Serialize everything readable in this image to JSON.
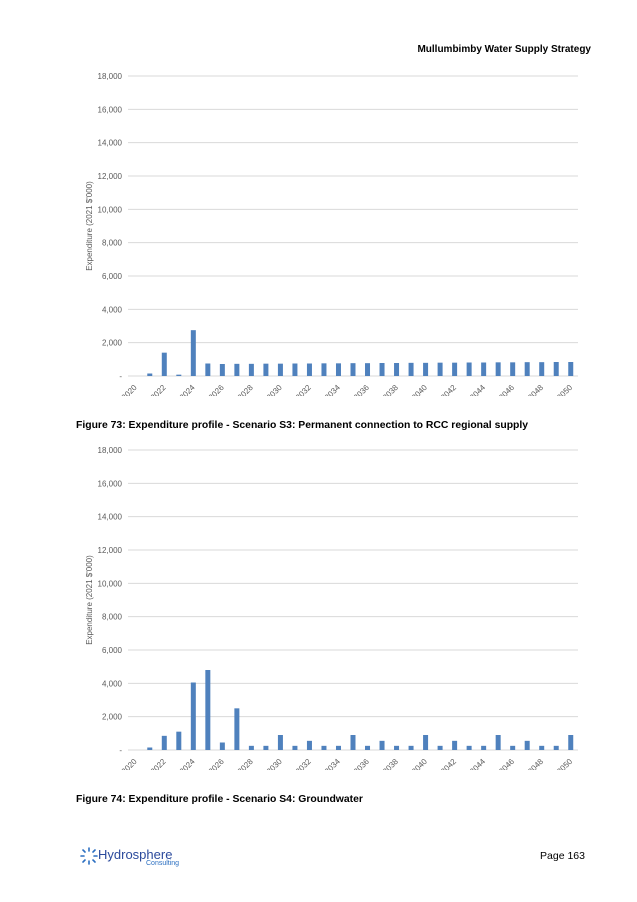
{
  "header": {
    "title": "Mullumbimby Water Supply Strategy"
  },
  "colors": {
    "bar": "#4f81bd",
    "grid": "#d9d9d9",
    "axis_text": "#595959",
    "logo_blue": "#2b4a9c"
  },
  "chart_data": [
    {
      "type": "bar",
      "ylabel": "Expenditure (2021 $'000)",
      "ylim": [
        0,
        18000
      ],
      "yticks": [
        0,
        2000,
        4000,
        6000,
        8000,
        10000,
        12000,
        14000,
        16000,
        18000
      ],
      "ytick_labels": [
        "-",
        "2,000",
        "4,000",
        "6,000",
        "8,000",
        "10,000",
        "12,000",
        "14,000",
        "16,000",
        "18,000"
      ],
      "categories": [
        2020,
        2021,
        2022,
        2023,
        2024,
        2025,
        2026,
        2027,
        2028,
        2029,
        2030,
        2031,
        2032,
        2033,
        2034,
        2035,
        2036,
        2037,
        2038,
        2039,
        2040,
        2041,
        2042,
        2043,
        2044,
        2045,
        2046,
        2047,
        2048,
        2049,
        2050
      ],
      "xtick_labels": [
        "2020",
        "2022",
        "2024",
        "2026",
        "2028",
        "2030",
        "2032",
        "2034",
        "2036",
        "2038",
        "2040",
        "2042",
        "2044",
        "2046",
        "2048",
        "2050"
      ],
      "values": [
        0,
        150,
        1400,
        80,
        2750,
        750,
        720,
        730,
        730,
        740,
        740,
        750,
        750,
        760,
        760,
        770,
        770,
        780,
        780,
        790,
        790,
        800,
        800,
        810,
        810,
        820,
        820,
        830,
        830,
        840,
        840
      ],
      "grid": true
    },
    {
      "type": "bar",
      "ylabel": "Expenditure (2021 $'000)",
      "ylim": [
        0,
        18000
      ],
      "yticks": [
        0,
        2000,
        4000,
        6000,
        8000,
        10000,
        12000,
        14000,
        16000,
        18000
      ],
      "ytick_labels": [
        "-",
        "2,000",
        "4,000",
        "6,000",
        "8,000",
        "10,000",
        "12,000",
        "14,000",
        "16,000",
        "18,000"
      ],
      "categories": [
        2020,
        2021,
        2022,
        2023,
        2024,
        2025,
        2026,
        2027,
        2028,
        2029,
        2030,
        2031,
        2032,
        2033,
        2034,
        2035,
        2036,
        2037,
        2038,
        2039,
        2040,
        2041,
        2042,
        2043,
        2044,
        2045,
        2046,
        2047,
        2048,
        2049,
        2050
      ],
      "xtick_labels": [
        "2020",
        "2022",
        "2024",
        "2026",
        "2028",
        "2030",
        "2032",
        "2034",
        "2036",
        "2038",
        "2040",
        "2042",
        "2044",
        "2046",
        "2048",
        "2050"
      ],
      "values": [
        0,
        150,
        850,
        1100,
        4050,
        4800,
        450,
        2500,
        250,
        250,
        900,
        250,
        550,
        250,
        250,
        900,
        250,
        550,
        250,
        250,
        900,
        250,
        550,
        250,
        250,
        900,
        250,
        550,
        250,
        250,
        900
      ],
      "grid": true
    }
  ],
  "captions": [
    "Figure 73: Expenditure profile - Scenario S3: Permanent connection to RCC regional supply",
    "Figure 74: Expenditure profile - Scenario S4: Groundwater"
  ],
  "footer": {
    "logo_text": "Hydrosphere",
    "logo_sub": "Consulting",
    "logo_icon": "swirl-logo-icon",
    "page_number": "Page 163"
  }
}
